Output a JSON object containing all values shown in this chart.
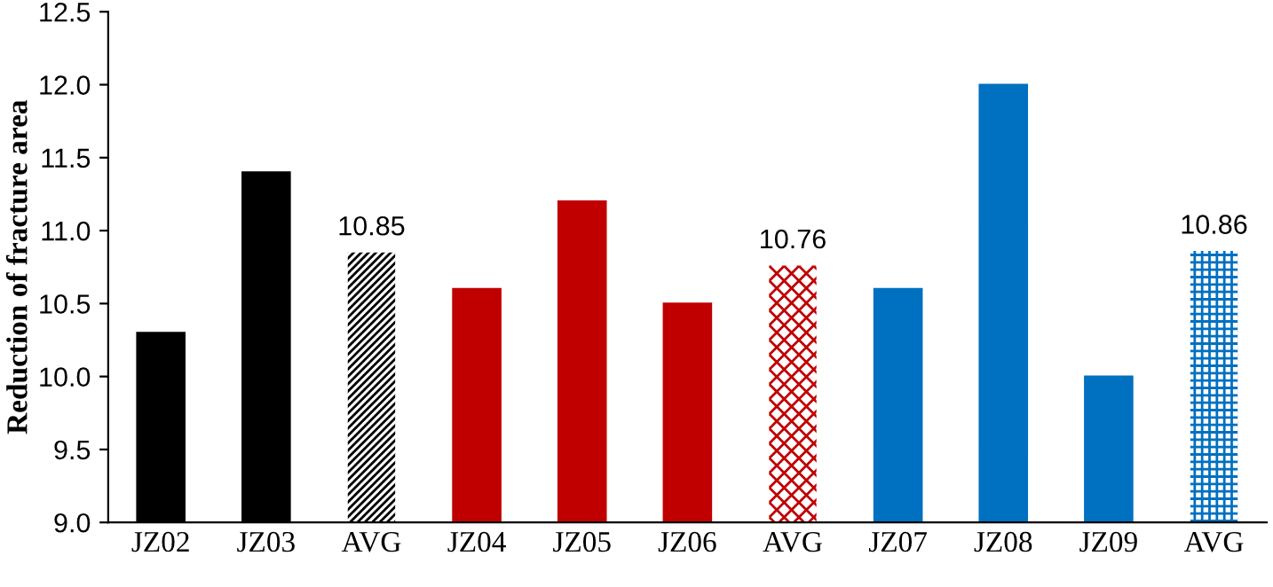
{
  "chart_data": {
    "type": "bar",
    "ylabel": "Reduction of fracture area",
    "categories": [
      "JZ02",
      "JZ03",
      "AVG",
      "JZ04",
      "JZ05",
      "JZ06",
      "AVG",
      "JZ07",
      "JZ08",
      "JZ09",
      "AVG"
    ],
    "values": [
      10.3,
      11.4,
      10.85,
      10.6,
      11.2,
      10.5,
      10.76,
      10.6,
      12.0,
      10.0,
      10.86
    ],
    "colors": [
      "#000000",
      "#000000",
      "#000000",
      "#c00000",
      "#c00000",
      "#c00000",
      "#c00000",
      "#0070c0",
      "#0070c0",
      "#0070c0",
      "#0070c0"
    ],
    "value_labels": [
      null,
      null,
      "10.85",
      null,
      null,
      null,
      "10.76",
      null,
      null,
      null,
      "10.86"
    ],
    "ylim": [
      9.0,
      12.5
    ],
    "yticks": [
      {
        "value": 9,
        "label": "9.0"
      },
      {
        "value": 9.5,
        "label": "9.5"
      },
      {
        "value": 10,
        "label": "10.0"
      },
      {
        "value": 10.5,
        "label": "10.5"
      },
      {
        "value": 11,
        "label": "11.0"
      },
      {
        "value": 11.5,
        "label": "11.5"
      },
      {
        "value": 12,
        "label": "12.0"
      },
      {
        "value": 12.5,
        "label": "12.5"
      }
    ],
    "grid": false,
    "legend": false
  }
}
